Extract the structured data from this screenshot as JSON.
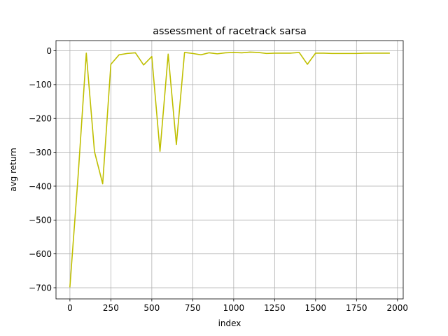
{
  "chart_data": {
    "type": "line",
    "title": "assessment of racetrack sarsa",
    "xlabel": "index",
    "ylabel": "avg return",
    "xlim": [
      -85,
      2035
    ],
    "ylim": [
      -733,
      30
    ],
    "xticks": [
      0,
      250,
      500,
      750,
      1000,
      1250,
      1500,
      1750,
      2000
    ],
    "yticks": [
      0,
      -100,
      -200,
      -300,
      -400,
      -500,
      -600,
      -700
    ],
    "xtick_labels": [
      "0",
      "250",
      "500",
      "750",
      "1000",
      "1250",
      "1500",
      "1750",
      "2000"
    ],
    "ytick_labels": [
      "0",
      "−100",
      "−200",
      "−300",
      "−400",
      "−500",
      "−600",
      "−700"
    ],
    "grid": true,
    "series": [
      {
        "color": "#bfbf00",
        "x": [
          0,
          50,
          100,
          150,
          200,
          250,
          300,
          350,
          400,
          450,
          500,
          550,
          600,
          650,
          700,
          750,
          800,
          850,
          900,
          950,
          1000,
          1050,
          1100,
          1150,
          1200,
          1250,
          1300,
          1350,
          1400,
          1450,
          1500,
          1550,
          1600,
          1650,
          1700,
          1750,
          1800,
          1850,
          1900,
          1950
        ],
        "y": [
          -697,
          -370,
          -7,
          -298,
          -393,
          -40,
          -12,
          -8,
          -6,
          -42,
          -17,
          -297,
          -10,
          -277,
          -5,
          -8,
          -12,
          -6,
          -9,
          -6,
          -5,
          -6,
          -4,
          -5,
          -8,
          -7,
          -7,
          -7,
          -5,
          -40,
          -7,
          -7,
          -8,
          -8,
          -8,
          -8,
          -7,
          -7,
          -7,
          -7
        ]
      }
    ]
  }
}
